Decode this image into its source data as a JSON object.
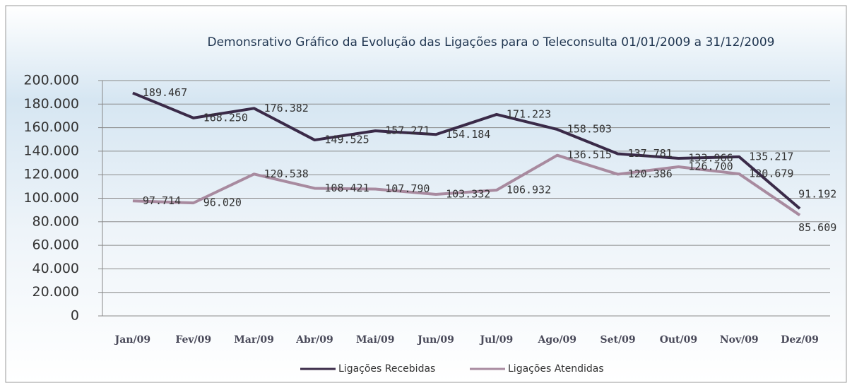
{
  "chart_data": {
    "type": "line",
    "title": "Demonsrativo Gráfico da Evolução das Ligações para o Teleconsulta 01/01/2009 a 31/12/2009",
    "categories": [
      "Jan/09",
      "Fev/09",
      "Mar/09",
      "Abr/09",
      "Mai/09",
      "Jun/09",
      "Jul/09",
      "Ago/09",
      "Set/09",
      "Out/09",
      "Nov/09",
      "Dez/09"
    ],
    "series": [
      {
        "name": "Ligações Recebidas",
        "color": "#3a2a48",
        "values": [
          189467,
          168250,
          176382,
          149525,
          157271,
          154184,
          171223,
          158503,
          137781,
          133966,
          135217,
          91192
        ],
        "value_labels": [
          "189.467",
          "168.250",
          "176.382",
          "149.525",
          "157.271",
          "154.184",
          "171.223",
          "158.503",
          "137.781",
          "133.966",
          "135.217",
          "91.192"
        ]
      },
      {
        "name": "Ligações Atendidas",
        "color": "#a88a9f",
        "values": [
          97714,
          96020,
          120538,
          108421,
          107790,
          103332,
          106932,
          136515,
          120386,
          126700,
          120679,
          85609
        ],
        "value_labels": [
          "97.714",
          "96.020",
          "120.538",
          "108.421",
          "107.790",
          "103.332",
          "106.932",
          "136.515",
          "120.386",
          "126.700",
          "120.679",
          "85.609"
        ]
      }
    ],
    "ylim": [
      0,
      200000
    ],
    "yticks": [
      0,
      {
        "value": 20000,
        "label": "20.000"
      },
      {
        "value": 40000,
        "label": "40.000"
      },
      {
        "value": 60000,
        "label": "60.000"
      },
      {
        "value": 80000,
        "label": "80.000"
      },
      {
        "value": 100000,
        "label": "100.000"
      },
      {
        "value": 120000,
        "label": "120.000"
      },
      {
        "value": 140000,
        "label": "140.000"
      },
      {
        "value": 160000,
        "label": "160.000"
      },
      {
        "value": 180000,
        "label": "180.000"
      },
      {
        "value": 200000,
        "label": "200.000"
      }
    ],
    "grid": true,
    "legend": "bottom"
  }
}
